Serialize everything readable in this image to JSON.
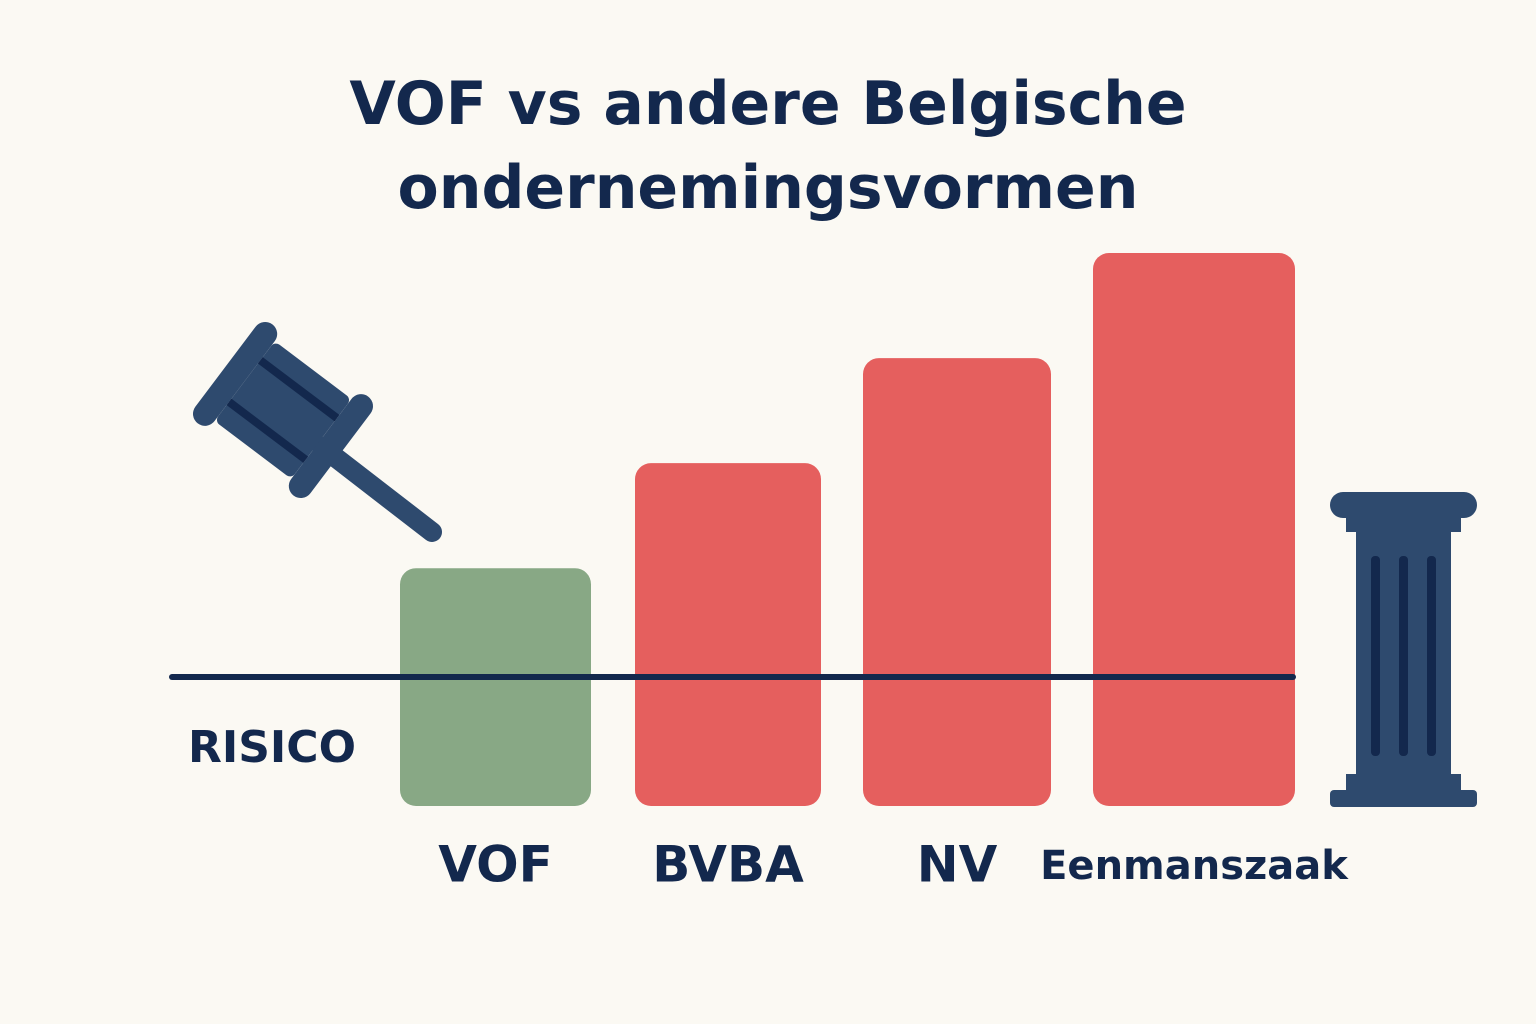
{
  "chart_data": {
    "type": "bar",
    "title": "VOF vs andere Belgische ondernemingsvormen",
    "y_label": "RISICO",
    "categories": [
      "VOF",
      "BVBA",
      "NV",
      "Eenmanszaak"
    ],
    "values": [
      43,
      62,
      81,
      100
    ],
    "colors": [
      "#88a885",
      "#e55f5e",
      "#e55f5e",
      "#e55f5e"
    ],
    "ylim": [
      0,
      100
    ]
  }
}
